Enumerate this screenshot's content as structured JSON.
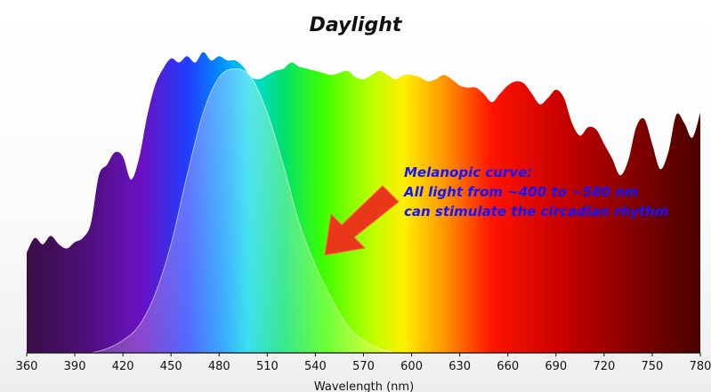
{
  "chart_data": {
    "type": "area",
    "title": "Daylight",
    "xlabel": "Wavelength (nm)",
    "ylabel": "",
    "xlim": [
      360,
      780
    ],
    "xticks": [
      360,
      390,
      420,
      450,
      480,
      510,
      540,
      570,
      600,
      630,
      660,
      690,
      720,
      750,
      780
    ],
    "grid": false,
    "fill": "visible-spectrum-gradient",
    "series": [
      {
        "x": [
          360,
          365,
          370,
          375,
          380,
          385,
          390,
          395,
          400,
          405,
          410,
          415,
          420,
          425,
          430,
          435,
          440,
          445,
          450,
          455,
          460,
          465,
          470,
          475,
          480,
          485,
          490,
          495,
          500,
          505,
          510,
          515,
          520,
          525,
          530,
          535,
          540,
          545,
          550,
          555,
          560,
          565,
          570,
          575,
          580,
          585,
          590,
          595,
          600,
          605,
          610,
          615,
          620,
          625,
          630,
          635,
          640,
          645,
          650,
          655,
          660,
          665,
          670,
          675,
          680,
          685,
          690,
          695,
          700,
          705,
          710,
          715,
          720,
          725,
          730,
          735,
          740,
          745,
          750,
          755,
          760,
          765,
          770,
          775,
          780
        ],
        "values": [
          0.48,
          0.55,
          0.52,
          0.56,
          0.52,
          0.5,
          0.53,
          0.55,
          0.62,
          0.85,
          0.9,
          0.96,
          0.94,
          0.83,
          0.93,
          1.13,
          1.28,
          1.36,
          1.41,
          1.39,
          1.42,
          1.39,
          1.44,
          1.4,
          1.42,
          1.4,
          1.4,
          1.37,
          1.32,
          1.31,
          1.33,
          1.35,
          1.36,
          1.39,
          1.37,
          1.36,
          1.35,
          1.34,
          1.33,
          1.34,
          1.35,
          1.32,
          1.31,
          1.33,
          1.35,
          1.33,
          1.31,
          1.33,
          1.33,
          1.32,
          1.3,
          1.31,
          1.33,
          1.31,
          1.28,
          1.27,
          1.27,
          1.24,
          1.2,
          1.24,
          1.28,
          1.3,
          1.29,
          1.24,
          1.19,
          1.22,
          1.26,
          1.22,
          1.1,
          1.04,
          1.08,
          1.07,
          1.0,
          0.93,
          0.85,
          0.92,
          1.08,
          1.12,
          1.0,
          0.88,
          0.96,
          1.14,
          1.1,
          1.03,
          1.15
        ]
      },
      {
        "name": "Melanopic curve",
        "x": [
          400,
          410,
          420,
          430,
          440,
          450,
          460,
          470,
          480,
          490,
          500,
          510,
          520,
          530,
          540,
          550,
          560,
          570,
          580,
          590
        ],
        "values": [
          0.0,
          0.02,
          0.06,
          0.13,
          0.28,
          0.52,
          0.85,
          1.15,
          1.32,
          1.36,
          1.32,
          1.15,
          0.9,
          0.62,
          0.42,
          0.26,
          0.13,
          0.06,
          0.02,
          0.0
        ]
      }
    ],
    "annotations": [
      "Melanopic curve:",
      "All light from ~400 to ~580 nm",
      "can stimulate the circadian rhythm"
    ],
    "colors": {
      "arrow": "#e8371a",
      "annotation_text": "#1414ff"
    }
  }
}
